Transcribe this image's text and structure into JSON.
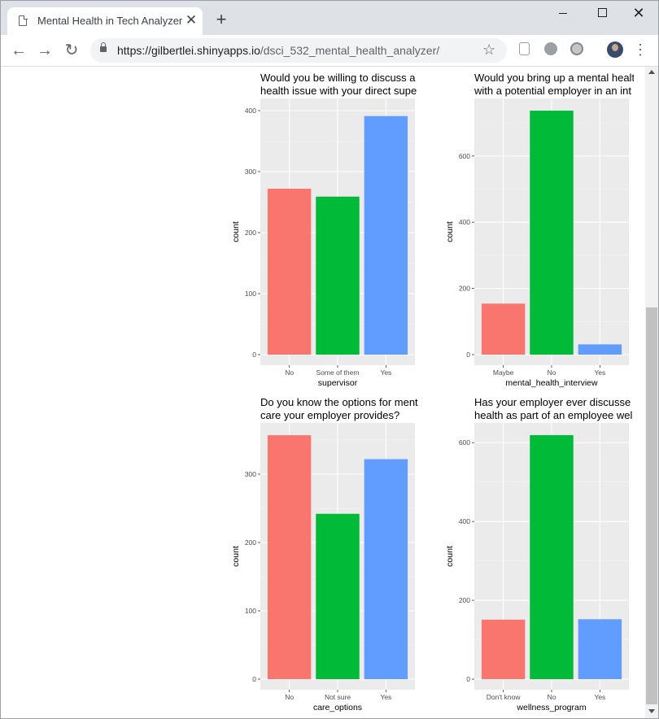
{
  "browser": {
    "tab_title": "Mental Health in Tech Analyzer",
    "tab_close": "✕",
    "new_tab": "+",
    "url_host": "https://gilbertlei.shinyapps.io",
    "url_path": "/dsci_532_mental_health_analyzer/",
    "icons": [
      "page-icon",
      "close-icon",
      "plus-icon",
      "back-icon",
      "forward-icon",
      "reload-icon",
      "lock-icon",
      "star-icon",
      "extension-icon",
      "globe-icon",
      "circle-icon",
      "avatar",
      "kebab-menu-icon"
    ]
  },
  "colors": {
    "red": "#F8766D",
    "green": "#00BA38",
    "blue": "#619CFF",
    "panel": "#EBEBEB",
    "grid": "#FFFFFF"
  },
  "chart_data": [
    {
      "type": "bar",
      "title": "Would you be willing to discuss a\nhealth issue with your direct supe",
      "xlabel": "supervisor",
      "ylabel": "count",
      "categories": [
        "No",
        "Some of them",
        "Yes"
      ],
      "values": [
        272,
        259,
        391
      ],
      "ylim": [
        0,
        420
      ],
      "yticks": [
        0,
        100,
        200,
        300,
        400
      ],
      "ytick_labels": [
        "0",
        "100",
        "200",
        "300",
        "400"
      ],
      "grid": true,
      "legend": "none"
    },
    {
      "type": "bar",
      "title": "Would you bring up a mental healt\nwith a potential employer in an int",
      "xlabel": "mental_health_interview",
      "ylabel": "count",
      "categories": [
        "Maybe",
        "No",
        "Yes"
      ],
      "values": [
        154,
        737,
        31
      ],
      "ylim": [
        0,
        774
      ],
      "yticks": [
        0,
        200,
        400,
        600
      ],
      "ytick_labels": [
        "0",
        "200",
        "400",
        "600"
      ],
      "grid": true,
      "legend": "none"
    },
    {
      "type": "bar",
      "title": "Do you know the options for ment\ncare your employer provides?",
      "xlabel": "care_options",
      "ylabel": "count",
      "categories": [
        "No",
        "Not sure",
        "Yes"
      ],
      "values": [
        357,
        242,
        322
      ],
      "ylim": [
        0,
        375
      ],
      "yticks": [
        0,
        100,
        200,
        300
      ],
      "ytick_labels": [
        "0",
        "100",
        "200",
        "300"
      ],
      "grid": true,
      "legend": "none"
    },
    {
      "type": "bar",
      "title": "Has your employer ever discusse\nhealth as part of an employee wel",
      "xlabel": "wellness_program",
      "ylabel": "count",
      "categories": [
        "Don't know",
        "No",
        "Yes"
      ],
      "values": [
        151,
        619,
        152
      ],
      "ylim": [
        0,
        650
      ],
      "yticks": [
        0,
        200,
        400,
        600
      ],
      "ytick_labels": [
        "0",
        "200",
        "400",
        "600"
      ],
      "grid": true,
      "legend": "none"
    }
  ]
}
